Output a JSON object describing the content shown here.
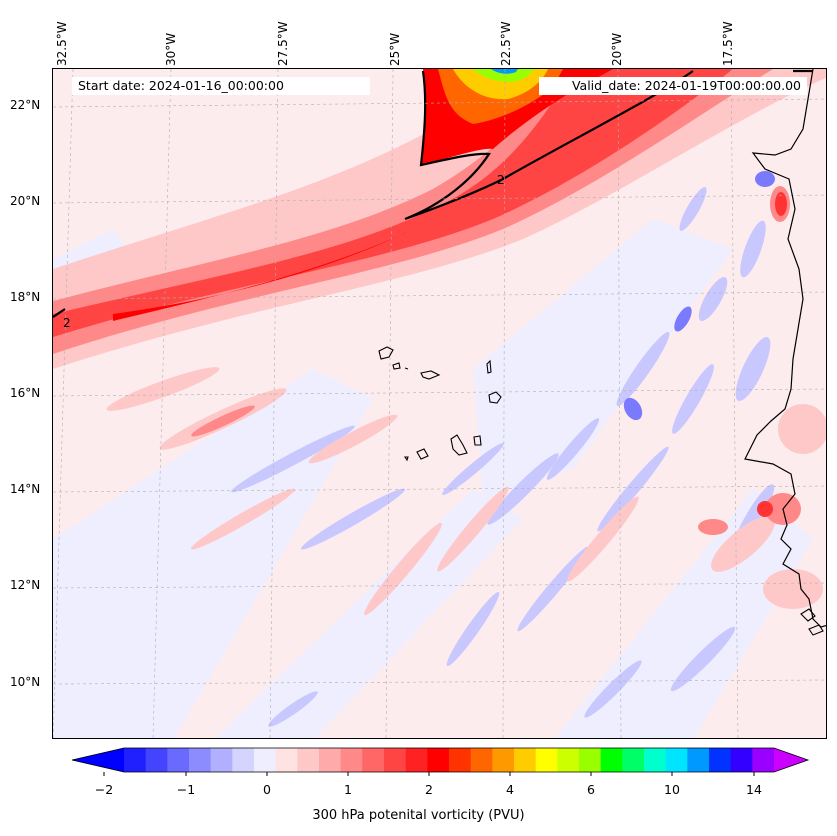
{
  "header": {
    "start_date": "Start date: 2024-01-16_00:00:00",
    "valid_date": "Valid_date: 2024-01-19T00:00:00.00"
  },
  "map": {
    "variable": "300 hPa potenital vorticity (PVU)",
    "contour_label": "2",
    "lon_ticks": [
      "32.5°W",
      "30°W",
      "27.5°W",
      "25°W",
      "22.5°W",
      "20°W",
      "17.5°W"
    ],
    "lat_ticks": [
      "22°N",
      "20°N",
      "18°N",
      "16°N",
      "14°N",
      "12°N",
      "10°N"
    ],
    "colors": {
      "background_pv": "#fdecee",
      "jet_core": "#ff1a1a",
      "low_pv": "#c8c8ff",
      "contour": "#000000"
    }
  },
  "colorbar": {
    "tick_labels": [
      "−2",
      "−1",
      "0",
      "1",
      "2",
      "4",
      "6",
      "10",
      "14"
    ],
    "colors": [
      "#0000ff",
      "#2020ff",
      "#4444ff",
      "#6a6aff",
      "#8c8cff",
      "#b0b0ff",
      "#d4d4ff",
      "#eeeeff",
      "#ffe2e2",
      "#ffc8c8",
      "#ffaaaa",
      "#ff8888",
      "#ff6666",
      "#ff4444",
      "#ff2222",
      "#ff0000",
      "#ff3300",
      "#ff6600",
      "#ff9900",
      "#ffcc00",
      "#ffff00",
      "#ccff00",
      "#99ff00",
      "#00ff00",
      "#00ff66",
      "#00ffcc",
      "#00e5ff",
      "#0099ff",
      "#0033ff",
      "#3300ff",
      "#9900ff",
      "#cc00ff"
    ]
  }
}
